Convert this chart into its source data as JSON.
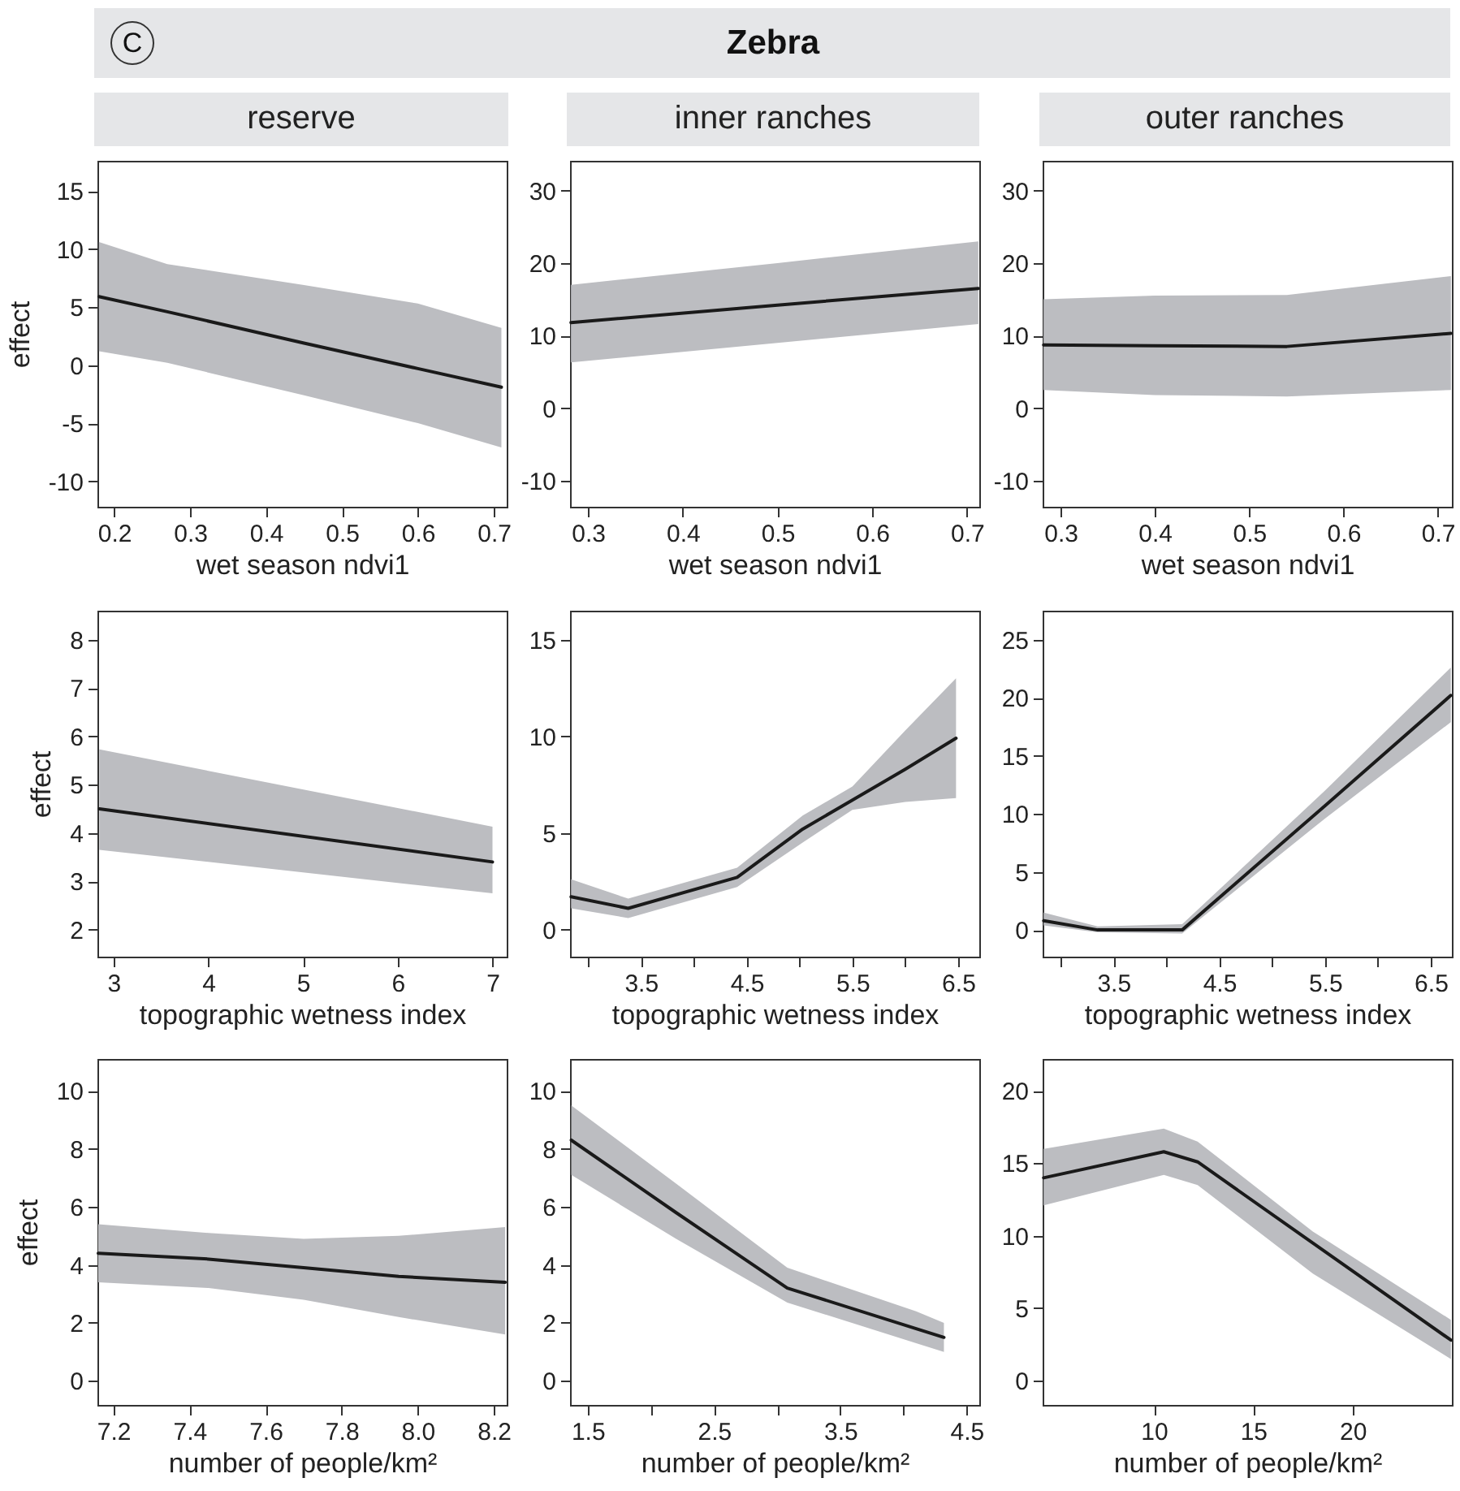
{
  "chart_data": [
    {
      "type": "line",
      "annotations": [
        "C"
      ],
      "subtitle": "reserve",
      "xlabel": "wet season ndvi1",
      "ylabel": "effect",
      "xlim": [
        0.178,
        0.717
      ],
      "xticks": [
        0.2,
        0.3,
        0.4,
        0.5,
        0.6,
        0.7
      ],
      "ylim": [
        -12.2,
        17.6
      ],
      "yticks": [
        -10,
        -5,
        0,
        5,
        10,
        15
      ],
      "series": [
        {
          "color": "#1a1a1a",
          "x": [
            0.18,
            0.27,
            0.45,
            0.6,
            0.71
          ],
          "values": [
            5.9,
            4.6,
            1.9,
            -0.3,
            -1.9
          ],
          "lower": [
            1.2,
            0.2,
            -2.6,
            -5.0,
            -7.1
          ],
          "upper": [
            10.6,
            8.7,
            6.9,
            5.3,
            3.2
          ]
        }
      ]
    },
    {
      "type": "line",
      "title": "Zebra",
      "subtitle": "inner ranches",
      "xlabel": "wet season ndvi1",
      "xlim": [
        0.281,
        0.713
      ],
      "xticks": [
        0.3,
        0.4,
        0.5,
        0.6,
        0.7
      ],
      "ylim": [
        -13.6,
        34.1
      ],
      "yticks": [
        -10,
        0,
        10,
        20,
        30
      ],
      "series": [
        {
          "color": "#1a1a1a",
          "x": [
            0.282,
            0.5,
            0.712
          ],
          "values": [
            11.8,
            14.2,
            16.5
          ],
          "lower": [
            6.3,
            9.0,
            11.6
          ],
          "upper": [
            17,
            20,
            23
          ]
        }
      ]
    },
    {
      "type": "line",
      "subtitle": "outer ranches",
      "xlabel": "wet season ndvi1",
      "xlim": [
        0.281,
        0.715
      ],
      "xticks": [
        0.3,
        0.4,
        0.5,
        0.6,
        0.7
      ],
      "ylim": [
        -13.6,
        34.1
      ],
      "yticks": [
        -10,
        0,
        10,
        20,
        30
      ],
      "series": [
        {
          "color": "#1a1a1a",
          "x": [
            0.282,
            0.4,
            0.54,
            0.714
          ],
          "values": [
            8.7,
            8.6,
            8.5,
            10.3
          ],
          "lower": [
            2.5,
            1.8,
            1.6,
            2.5
          ],
          "upper": [
            15,
            15.5,
            15.6,
            18.2
          ]
        }
      ]
    },
    {
      "type": "line",
      "xlabel": "topographic wetness index",
      "ylabel": "effect",
      "xlim": [
        2.83,
        7.15
      ],
      "xticks": [
        3,
        4,
        5,
        6,
        7
      ],
      "ylim": [
        1.44,
        8.6
      ],
      "yticks": [
        2,
        3,
        4,
        5,
        6,
        7,
        8
      ],
      "series": [
        {
          "color": "#1a1a1a",
          "x": [
            2.85,
            7
          ],
          "values": [
            4.5,
            3.4
          ],
          "lower": [
            3.65,
            2.75
          ],
          "upper": [
            5.73,
            4.13
          ]
        }
      ]
    },
    {
      "type": "line",
      "xlabel": "topographic wetness index",
      "xlim": [
        2.83,
        6.7
      ],
      "xticks": [
        {
          "value": 3,
          "label": null
        },
        3.5,
        {
          "value": 4,
          "label": null
        },
        4.5,
        {
          "value": 5,
          "label": null
        },
        5.5,
        {
          "value": 6,
          "label": null
        },
        6.5
      ],
      "ylim": [
        -1.4,
        16.5
      ],
      "yticks": [
        0,
        5,
        10,
        15
      ],
      "series": [
        {
          "color": "#1a1a1a",
          "x": [
            2.84,
            3.38,
            4.41,
            5.03,
            5.5,
            6.0,
            6.48
          ],
          "values": [
            1.7,
            1.1,
            2.7,
            5.2,
            6.7,
            8.3,
            9.9
          ],
          "lower": [
            1.1,
            0.6,
            2.2,
            4.5,
            6.2,
            6.6,
            6.8
          ],
          "upper": [
            2.6,
            1.6,
            3.2,
            5.9,
            7.4,
            10.3,
            13.0
          ]
        }
      ]
    },
    {
      "type": "line",
      "xlabel": "topographic wetness index",
      "xlim": [
        2.83,
        6.7
      ],
      "xticks": [
        {
          "value": 3,
          "label": null
        },
        3.5,
        {
          "value": 4,
          "label": null
        },
        4.5,
        {
          "value": 5,
          "label": null
        },
        5.5,
        {
          "value": 6,
          "label": null
        },
        6.5
      ],
      "ylim": [
        -2.3,
        27.5
      ],
      "yticks": [
        0,
        5,
        10,
        15,
        20,
        25
      ],
      "series": [
        {
          "color": "#1a1a1a",
          "x": [
            2.84,
            3.35,
            4.15,
            5.5,
            6.69
          ],
          "values": [
            0.8,
            0,
            0,
            10.7,
            20.2
          ],
          "lower": [
            0.4,
            -0.2,
            -0.3,
            9.6,
            17.9
          ],
          "upper": [
            1.5,
            0.3,
            0.5,
            12.0,
            22.6
          ]
        }
      ]
    },
    {
      "type": "line",
      "xlabel": "number of people/km²",
      "ylabel": "effect",
      "xlim": [
        7.158,
        8.234
      ],
      "xticks": [
        7.2,
        7.4,
        7.6,
        7.8,
        {
          "value": 8,
          "label": "8.0"
        },
        8.2
      ],
      "ylim": [
        -0.83,
        11.1
      ],
      "yticks": [
        0,
        2,
        4,
        6,
        8,
        10
      ],
      "series": [
        {
          "color": "#1a1a1a",
          "x": [
            7.16,
            7.45,
            7.7,
            7.95,
            8.23
          ],
          "values": [
            4.4,
            4.2,
            3.9,
            3.6,
            3.4
          ],
          "lower": [
            3.4,
            3.2,
            2.8,
            2.2,
            1.6
          ],
          "upper": [
            5.4,
            5.1,
            4.9,
            5.0,
            5.3
          ]
        }
      ]
    },
    {
      "type": "line",
      "xlabel": "number of people/km²",
      "xlim": [
        1.36,
        4.6
      ],
      "xticks": [
        1.5,
        {
          "value": 2,
          "label": null
        },
        2.5,
        {
          "value": 3,
          "label": null
        },
        3.5,
        {
          "value": 4,
          "label": null
        },
        4.5
      ],
      "ylim": [
        -0.83,
        11.1
      ],
      "yticks": [
        0,
        2,
        4,
        6,
        8,
        10
      ],
      "series": [
        {
          "color": "#1a1a1a",
          "x": [
            1.37,
            2.2,
            3.08,
            4.1,
            4.32
          ],
          "values": [
            8.3,
            5.8,
            3.2,
            1.8,
            1.5
          ],
          "lower": [
            7.1,
            4.9,
            2.7,
            1.3,
            1.0
          ],
          "upper": [
            9.5,
            6.8,
            3.9,
            2.4,
            2.0
          ]
        }
      ]
    },
    {
      "type": "line",
      "xlabel": "number of people/km²",
      "xlim": [
        4.4,
        25.0
      ],
      "xticks": [
        10,
        15,
        20
      ],
      "ylim": [
        -1.67,
        22.2
      ],
      "yticks": [
        0,
        5,
        10,
        15,
        20
      ],
      "series": [
        {
          "color": "#1a1a1a",
          "x": [
            4.45,
            10.5,
            12.2,
            18,
            24.95
          ],
          "values": [
            14.0,
            15.8,
            15.1,
            9.5,
            2.8
          ],
          "lower": [
            12.1,
            14.2,
            13.5,
            7.4,
            1.5
          ],
          "upper": [
            16.0,
            17.4,
            16.5,
            10.3,
            4.2
          ]
        }
      ]
    }
  ]
}
